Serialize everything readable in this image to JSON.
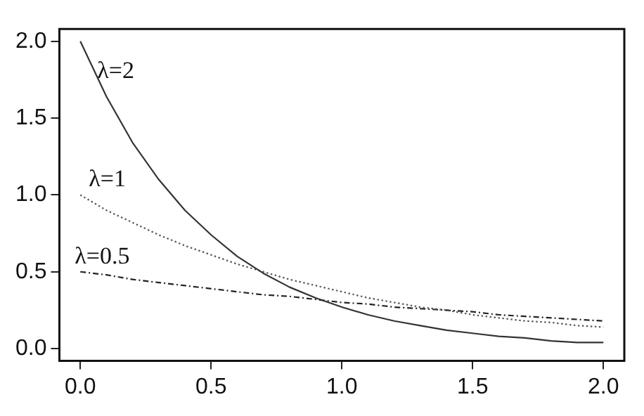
{
  "chart_data": {
    "type": "line",
    "x": [
      0,
      0.1,
      0.2,
      0.3,
      0.4,
      0.5,
      0.6,
      0.7,
      0.8,
      0.9,
      1.0,
      1.1,
      1.2,
      1.3,
      1.4,
      1.5,
      1.6,
      1.7,
      1.8,
      1.9,
      2.0
    ],
    "series": [
      {
        "name": "λ=2",
        "color": "#333333",
        "line_style": "solid",
        "values": [
          2,
          1.64,
          1.34,
          1.1,
          0.9,
          0.74,
          0.6,
          0.49,
          0.4,
          0.33,
          0.27,
          0.22,
          0.18,
          0.15,
          0.12,
          0.1,
          0.08,
          0.07,
          0.05,
          0.04,
          0.04
        ]
      },
      {
        "name": "λ=1",
        "color": "#555555",
        "line_style": "dotted",
        "values": [
          1,
          0.9,
          0.82,
          0.74,
          0.67,
          0.61,
          0.55,
          0.5,
          0.45,
          0.41,
          0.37,
          0.33,
          0.3,
          0.27,
          0.25,
          0.22,
          0.2,
          0.18,
          0.17,
          0.15,
          0.14
        ]
      },
      {
        "name": "λ=0.5",
        "color": "#222222",
        "line_style": "dashed",
        "values": [
          0.5,
          0.48,
          0.45,
          0.43,
          0.41,
          0.39,
          0.37,
          0.35,
          0.34,
          0.32,
          0.3,
          0.29,
          0.27,
          0.26,
          0.25,
          0.24,
          0.22,
          0.21,
          0.2,
          0.19,
          0.18
        ]
      }
    ],
    "xlim": [
      -0.08,
      2.08
    ],
    "xticks": [
      {
        "value": 0,
        "label": "0.0"
      },
      0.5,
      {
        "value": 1,
        "label": "1.0"
      },
      1.5,
      {
        "value": 2,
        "label": "2.0"
      }
    ],
    "ylim": [
      -0.08,
      2.08
    ],
    "yticks": [
      {
        "value": 0,
        "label": "0.0"
      },
      0.5,
      {
        "value": 1,
        "label": "1.0"
      },
      1.5,
      {
        "value": 2,
        "label": "2.0"
      }
    ],
    "grid": false,
    "legend": false,
    "marker": "none"
  }
}
